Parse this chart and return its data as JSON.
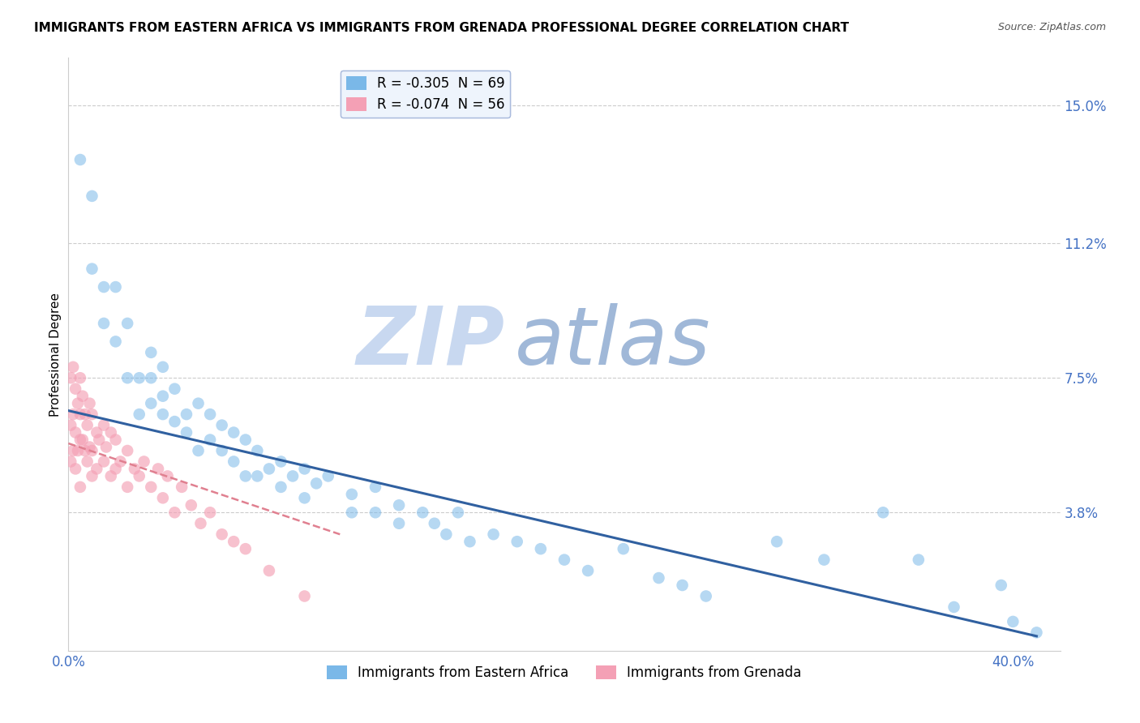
{
  "title": "IMMIGRANTS FROM EASTERN AFRICA VS IMMIGRANTS FROM GRENADA PROFESSIONAL DEGREE CORRELATION CHART",
  "source": "Source: ZipAtlas.com",
  "ylabel": "Professional Degree",
  "y_ticks": [
    0.038,
    0.075,
    0.112,
    0.15
  ],
  "y_tick_labels": [
    "3.8%",
    "7.5%",
    "11.2%",
    "15.0%"
  ],
  "xlim": [
    0.0,
    0.42
  ],
  "ylim": [
    0.0,
    0.163
  ],
  "legend_entries": [
    {
      "label": "R = -0.305  N = 69",
      "color": "#7ab8e8"
    },
    {
      "label": "R = -0.074  N = 56",
      "color": "#f4a0b5"
    }
  ],
  "watermark_zip": "ZIP",
  "watermark_atlas": "atlas",
  "watermark_color_light": "#c8d8f0",
  "watermark_color_dark": "#a0b8d8",
  "background_color": "#ffffff",
  "grid_color": "#cccccc",
  "blue_color": "#7ab8e8",
  "pink_color": "#f4a0b5",
  "blue_line_color": "#3060a0",
  "pink_line_color": "#e08090",
  "blue_scatter_x": [
    0.005,
    0.01,
    0.01,
    0.015,
    0.015,
    0.02,
    0.02,
    0.025,
    0.025,
    0.03,
    0.03,
    0.035,
    0.035,
    0.035,
    0.04,
    0.04,
    0.04,
    0.045,
    0.045,
    0.05,
    0.05,
    0.055,
    0.055,
    0.06,
    0.06,
    0.065,
    0.065,
    0.07,
    0.07,
    0.075,
    0.075,
    0.08,
    0.08,
    0.085,
    0.09,
    0.09,
    0.095,
    0.1,
    0.1,
    0.105,
    0.11,
    0.12,
    0.12,
    0.13,
    0.13,
    0.14,
    0.14,
    0.15,
    0.155,
    0.16,
    0.165,
    0.17,
    0.18,
    0.19,
    0.2,
    0.21,
    0.22,
    0.235,
    0.25,
    0.26,
    0.27,
    0.3,
    0.32,
    0.345,
    0.36,
    0.375,
    0.395,
    0.4,
    0.41
  ],
  "blue_scatter_y": [
    0.135,
    0.125,
    0.105,
    0.1,
    0.09,
    0.085,
    0.1,
    0.09,
    0.075,
    0.075,
    0.065,
    0.075,
    0.068,
    0.082,
    0.07,
    0.065,
    0.078,
    0.072,
    0.063,
    0.065,
    0.06,
    0.068,
    0.055,
    0.065,
    0.058,
    0.062,
    0.055,
    0.06,
    0.052,
    0.058,
    0.048,
    0.055,
    0.048,
    0.05,
    0.052,
    0.045,
    0.048,
    0.05,
    0.042,
    0.046,
    0.048,
    0.043,
    0.038,
    0.045,
    0.038,
    0.04,
    0.035,
    0.038,
    0.035,
    0.032,
    0.038,
    0.03,
    0.032,
    0.03,
    0.028,
    0.025,
    0.022,
    0.028,
    0.02,
    0.018,
    0.015,
    0.03,
    0.025,
    0.038,
    0.025,
    0.012,
    0.018,
    0.008,
    0.005
  ],
  "pink_scatter_x": [
    0.001,
    0.001,
    0.001,
    0.002,
    0.002,
    0.002,
    0.003,
    0.003,
    0.003,
    0.004,
    0.004,
    0.005,
    0.005,
    0.005,
    0.005,
    0.006,
    0.006,
    0.007,
    0.007,
    0.008,
    0.008,
    0.009,
    0.009,
    0.01,
    0.01,
    0.01,
    0.012,
    0.012,
    0.013,
    0.015,
    0.015,
    0.016,
    0.018,
    0.018,
    0.02,
    0.02,
    0.022,
    0.025,
    0.025,
    0.028,
    0.03,
    0.032,
    0.035,
    0.038,
    0.04,
    0.042,
    0.045,
    0.048,
    0.052,
    0.056,
    0.06,
    0.065,
    0.07,
    0.075,
    0.085,
    0.1
  ],
  "pink_scatter_y": [
    0.075,
    0.062,
    0.052,
    0.078,
    0.065,
    0.055,
    0.072,
    0.06,
    0.05,
    0.068,
    0.055,
    0.075,
    0.065,
    0.058,
    0.045,
    0.07,
    0.058,
    0.065,
    0.055,
    0.062,
    0.052,
    0.068,
    0.056,
    0.065,
    0.055,
    0.048,
    0.06,
    0.05,
    0.058,
    0.062,
    0.052,
    0.056,
    0.06,
    0.048,
    0.058,
    0.05,
    0.052,
    0.055,
    0.045,
    0.05,
    0.048,
    0.052,
    0.045,
    0.05,
    0.042,
    0.048,
    0.038,
    0.045,
    0.04,
    0.035,
    0.038,
    0.032,
    0.03,
    0.028,
    0.022,
    0.015
  ],
  "blue_trendline_x": [
    0.0,
    0.41
  ],
  "blue_trendline_y": [
    0.066,
    0.004
  ],
  "pink_trendline_x": [
    0.0,
    0.115
  ],
  "pink_trendline_y": [
    0.057,
    0.032
  ],
  "legend_box_color": "#eef4fc",
  "legend_border_color": "#aabbdd"
}
